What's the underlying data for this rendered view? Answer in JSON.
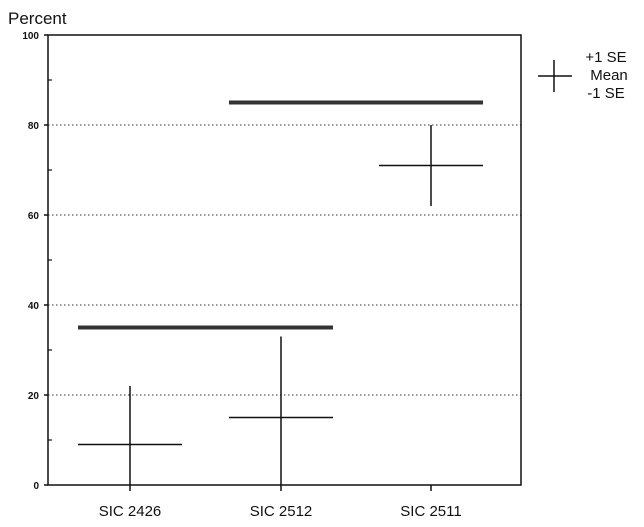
{
  "chart_data": {
    "type": "errorbar",
    "ylabel": "Percent",
    "ylim": [
      0,
      100
    ],
    "yticks": [
      0,
      20,
      40,
      60,
      80,
      100
    ],
    "grid": "horizontal-dotted",
    "categories": [
      "SIC 2426",
      "SIC 2512",
      "SIC 2511"
    ],
    "points": [
      {
        "category": "SIC 2426",
        "mean": 9,
        "plus_1se": 22,
        "minus_1se": 0
      },
      {
        "category": "SIC 2512",
        "mean": 15,
        "plus_1se": 33,
        "minus_1se": 0
      },
      {
        "category": "SIC 2511",
        "mean": 71,
        "plus_1se": 80,
        "minus_1se": 62
      }
    ],
    "group_bars": [
      {
        "categories": [
          "SIC 2426",
          "SIC 2512"
        ],
        "value": 35
      },
      {
        "categories": [
          "SIC 2512",
          "SIC 2511"
        ],
        "value": 85
      }
    ],
    "legend": {
      "position": "top-right",
      "items": [
        "+1 SE",
        "Mean",
        "-1 SE"
      ]
    }
  }
}
